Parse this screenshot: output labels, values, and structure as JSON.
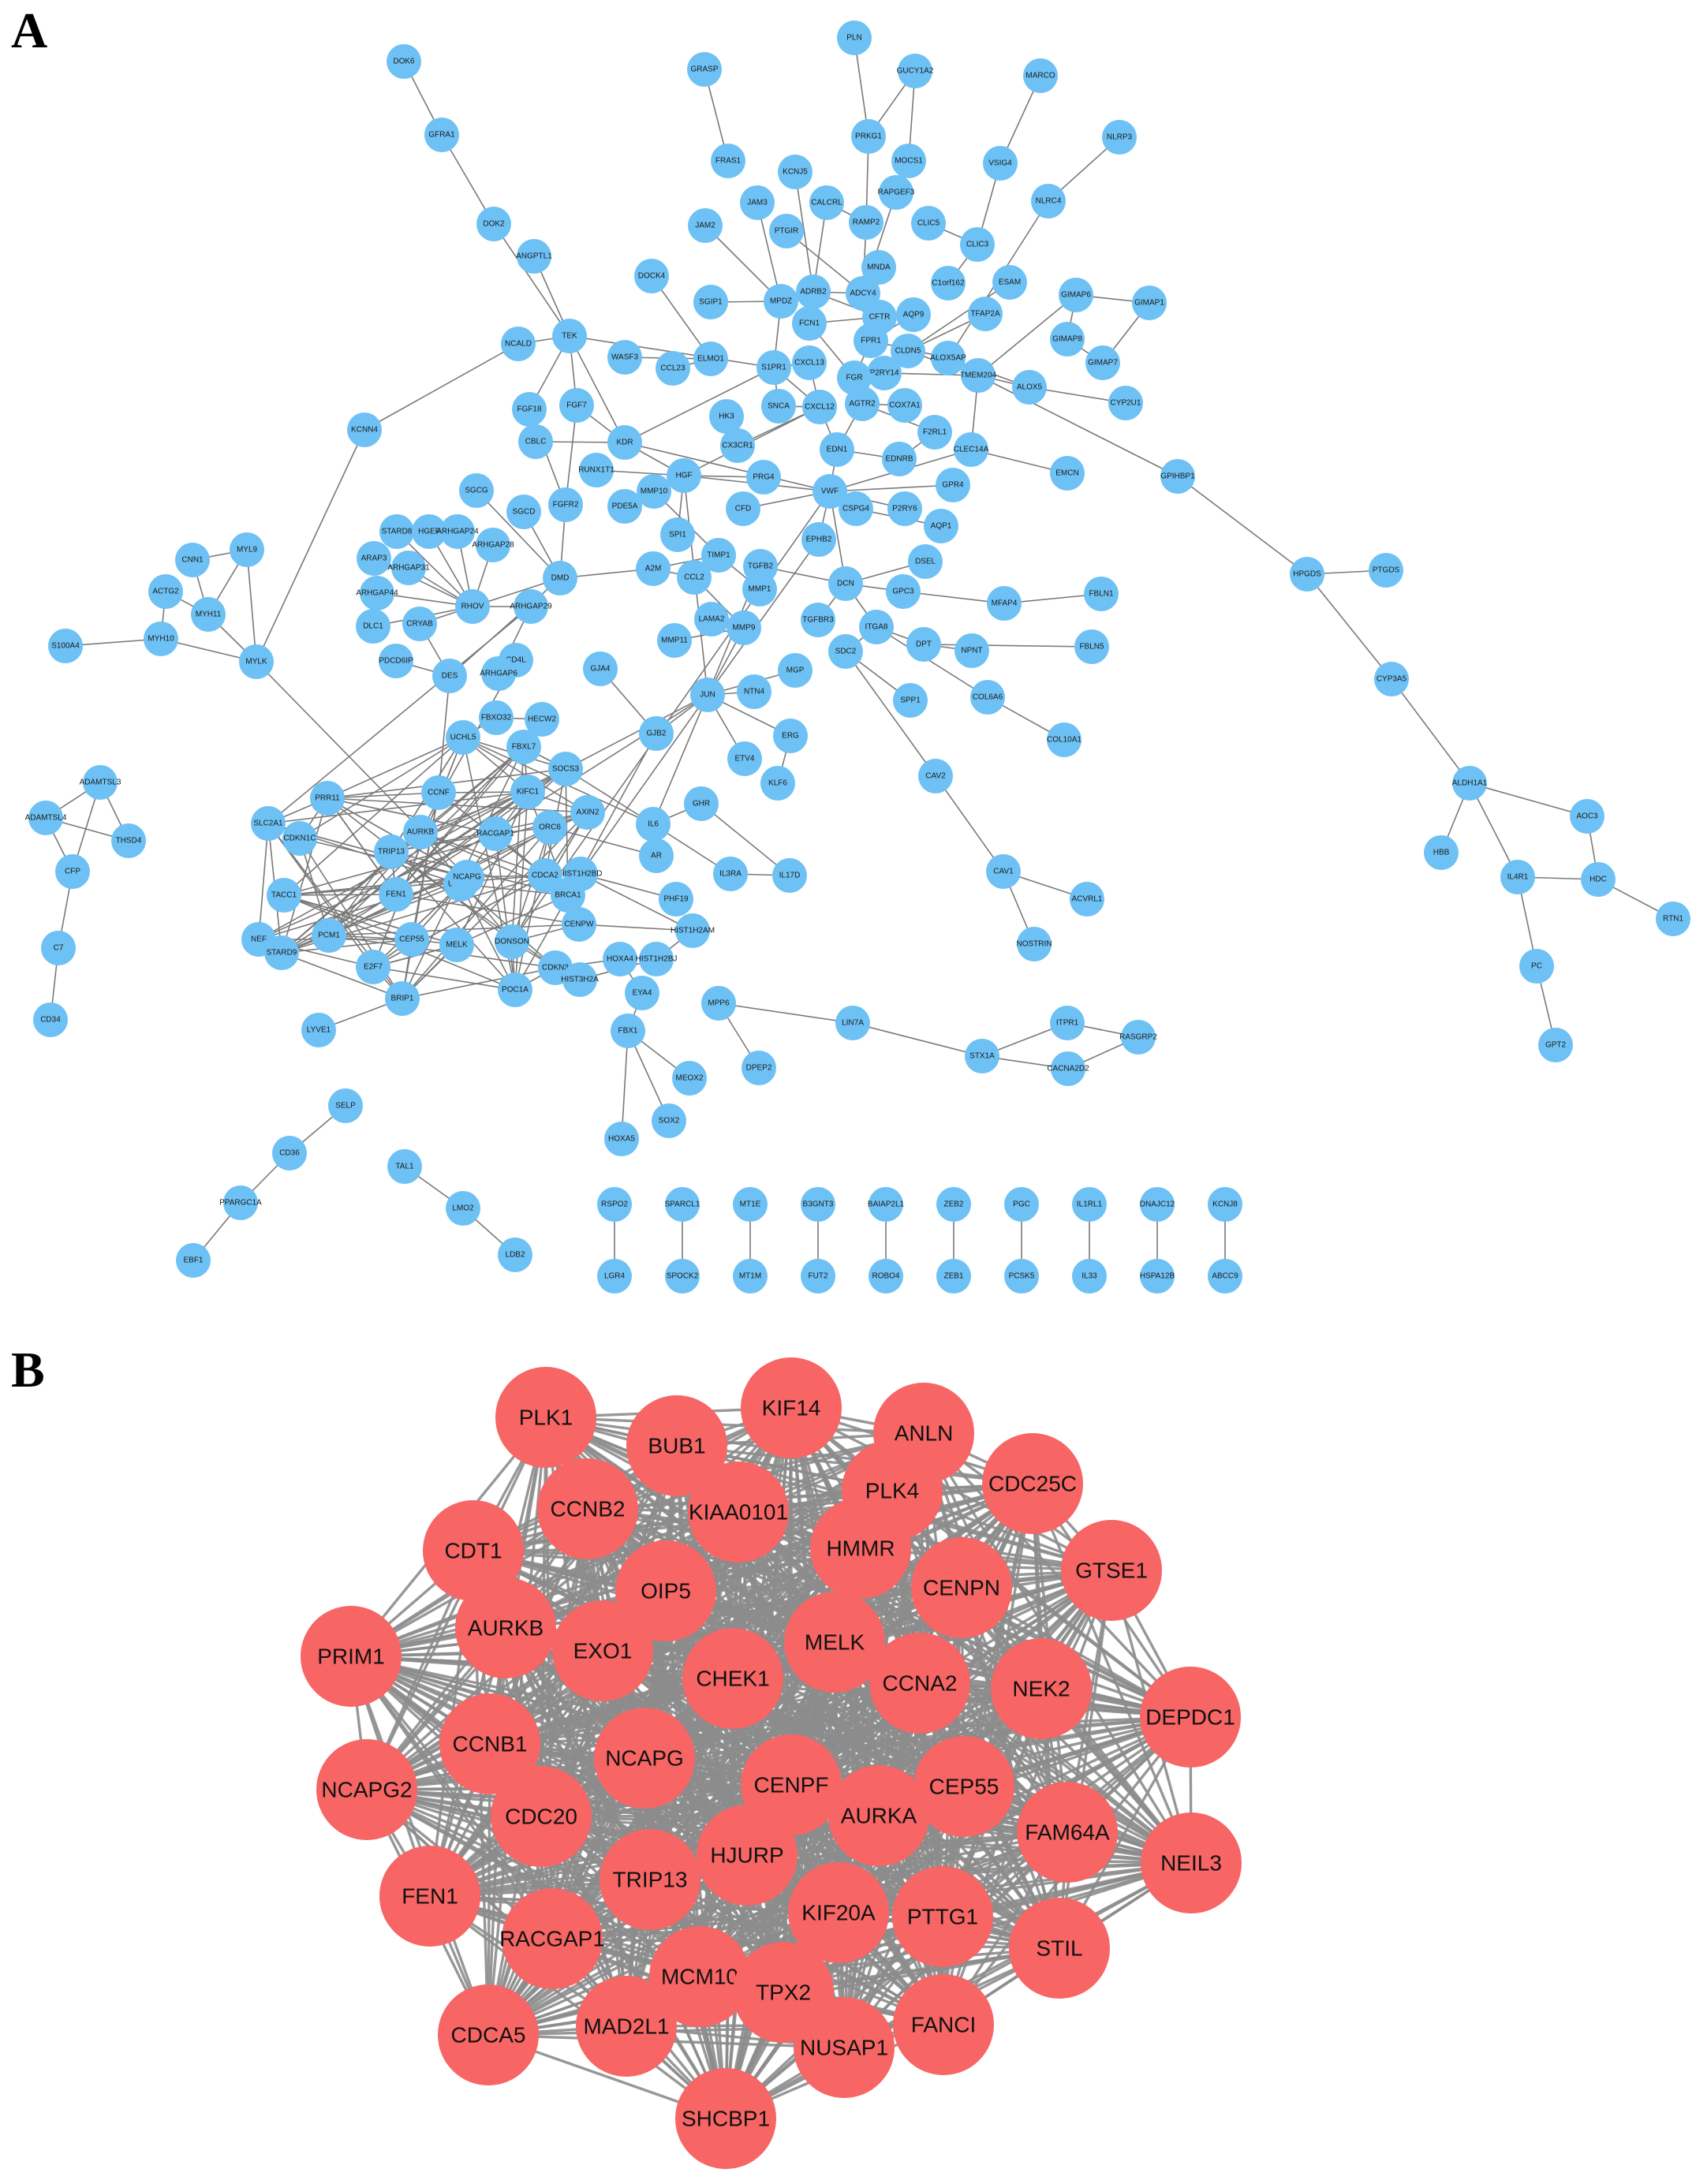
{
  "panels": {
    "a_label": "A",
    "b_label": "B"
  },
  "colors": {
    "panel_a_node": "#6ec1f4",
    "panel_b_node": "#f76565",
    "edge": "#8c8c8c"
  },
  "network_a": {
    "nodes": [
      {
        "id": "DOK6"
      },
      {
        "id": "GFRA1"
      },
      {
        "id": "DOK2"
      },
      {
        "id": "ANGPTL1"
      },
      {
        "id": "TEK"
      },
      {
        "id": "NCALD"
      },
      {
        "id": "KCNN4"
      },
      {
        "id": "GRASP"
      },
      {
        "id": "PLN"
      },
      {
        "id": "GUCY1A2"
      },
      {
        "id": "MARCO"
      },
      {
        "id": "NLRP3"
      },
      {
        "id": "PRKG1"
      },
      {
        "id": "MOCS1"
      },
      {
        "id": "VSIG4"
      },
      {
        "id": "NLRC4"
      },
      {
        "id": "FRAS1"
      },
      {
        "id": "KCNJ5"
      },
      {
        "id": "JAM3"
      },
      {
        "id": "CALCRL"
      },
      {
        "id": "RAMP2"
      },
      {
        "id": "RAPGEF3"
      },
      {
        "id": "CLIC5"
      },
      {
        "id": "CLIC3"
      },
      {
        "id": "JAM2"
      },
      {
        "id": "PTGIR"
      },
      {
        "id": "MNDA"
      },
      {
        "id": "C1orf162"
      },
      {
        "id": "ESAM"
      },
      {
        "id": "GIMAP6"
      },
      {
        "id": "GIMAP1"
      },
      {
        "id": "DOCK4"
      },
      {
        "id": "SGIP1"
      },
      {
        "id": "MPDZ"
      },
      {
        "id": "ADRB2"
      },
      {
        "id": "ADCY4"
      },
      {
        "id": "AQP9"
      },
      {
        "id": "TFAP2A"
      },
      {
        "id": "GIMAP8"
      },
      {
        "id": "GIMAP7"
      },
      {
        "id": "FCN1"
      },
      {
        "id": "CFTR"
      },
      {
        "id": "FPR1"
      },
      {
        "id": "CLDN5"
      },
      {
        "id": "ALOX5AP"
      },
      {
        "id": "TMEM204"
      },
      {
        "id": "ALOX5"
      },
      {
        "id": "CYP2U1"
      },
      {
        "id": "WASF3"
      },
      {
        "id": "CCL23"
      },
      {
        "id": "ELMO1"
      },
      {
        "id": "S1PR1"
      },
      {
        "id": "CXCL13"
      },
      {
        "id": "P2RY14"
      },
      {
        "id": "FGR"
      },
      {
        "id": "FGF18"
      },
      {
        "id": "FGF7"
      },
      {
        "id": "SNCA"
      },
      {
        "id": "CXCL12"
      },
      {
        "id": "AGTR2"
      },
      {
        "id": "COX7A1"
      },
      {
        "id": "CBLC"
      },
      {
        "id": "KDR"
      },
      {
        "id": "HK3"
      },
      {
        "id": "F2RL1"
      },
      {
        "id": "CX3CR1"
      },
      {
        "id": "EDN1"
      },
      {
        "id": "EDNRB"
      },
      {
        "id": "CLEC14A"
      },
      {
        "id": "GPIHBP1"
      },
      {
        "id": "EMCN"
      },
      {
        "id": "SGCG"
      },
      {
        "id": "RUNX1T1"
      },
      {
        "id": "HGF"
      },
      {
        "id": "PRG4"
      },
      {
        "id": "VWF"
      },
      {
        "id": "P2RY6"
      },
      {
        "id": "GPR4"
      },
      {
        "id": "SGCD"
      },
      {
        "id": "FGFR2"
      },
      {
        "id": "PDE5A"
      },
      {
        "id": "MMP10"
      },
      {
        "id": "CFD"
      },
      {
        "id": "CSPG4"
      },
      {
        "id": "AQP1"
      },
      {
        "id": "STARD8"
      },
      {
        "id": "HGEF"
      },
      {
        "id": "ARHGAP24"
      },
      {
        "id": "ARHGAP28"
      },
      {
        "id": "SPI1"
      },
      {
        "id": "EPHB2"
      },
      {
        "id": "TIMP1"
      },
      {
        "id": "DSEL"
      },
      {
        "id": "ARAP3"
      },
      {
        "id": "ARHGAP31"
      },
      {
        "id": "DMD"
      },
      {
        "id": "A2M"
      },
      {
        "id": "TGFB2"
      },
      {
        "id": "MMP1"
      },
      {
        "id": "DCN"
      },
      {
        "id": "GPC3"
      },
      {
        "id": "MFAP4"
      },
      {
        "id": "FBLN1"
      },
      {
        "id": "PTGDS"
      },
      {
        "id": "HPGDS"
      },
      {
        "id": "CNN1"
      },
      {
        "id": "MYL9"
      },
      {
        "id": "ARHGAP44"
      },
      {
        "id": "RHOV"
      },
      {
        "id": "ARHGAP29"
      },
      {
        "id": "CCL2"
      },
      {
        "id": "LAMA2"
      },
      {
        "id": "TGFBR3"
      },
      {
        "id": "ITGA8"
      },
      {
        "id": "ACTG2"
      },
      {
        "id": "MYH11"
      },
      {
        "id": "DLC1"
      },
      {
        "id": "CRYAB"
      },
      {
        "id": "MMP9"
      },
      {
        "id": "DPT"
      },
      {
        "id": "NPNT"
      },
      {
        "id": "FBLN5"
      },
      {
        "id": "S100A4"
      },
      {
        "id": "MYH10"
      },
      {
        "id": "MYLK"
      },
      {
        "id": "PDCD6IP"
      },
      {
        "id": "DES"
      },
      {
        "id": "CD4L"
      },
      {
        "id": "MMP11"
      },
      {
        "id": "SDC2"
      },
      {
        "id": "COL6A6"
      },
      {
        "id": "ARHGAP6"
      },
      {
        "id": "GJA4"
      },
      {
        "id": "JUN"
      },
      {
        "id": "NTN4"
      },
      {
        "id": "MGP"
      },
      {
        "id": "SPP1"
      },
      {
        "id": "CYP3A5"
      },
      {
        "id": "COL10A1"
      },
      {
        "id": "UCHL5"
      },
      {
        "id": "FBXO32"
      },
      {
        "id": "HECW2"
      },
      {
        "id": "GJB2"
      },
      {
        "id": "ERG"
      },
      {
        "id": "FBXL7"
      },
      {
        "id": "ETV4"
      },
      {
        "id": "KLF6"
      },
      {
        "id": "CAV2"
      },
      {
        "id": "CCNF"
      },
      {
        "id": "KIFC1"
      },
      {
        "id": "SOCS3"
      },
      {
        "id": "ALDH1A1"
      },
      {
        "id": "ADAMTSL3"
      },
      {
        "id": "PRR11"
      },
      {
        "id": "GHR"
      },
      {
        "id": "ADAMTSL4"
      },
      {
        "id": "THSD4"
      },
      {
        "id": "SLC2A1"
      },
      {
        "id": "AXIN2"
      },
      {
        "id": "IL6"
      },
      {
        "id": "AOC3"
      },
      {
        "id": "CDKN1C"
      },
      {
        "id": "ORC6"
      },
      {
        "id": "AR"
      },
      {
        "id": "CFP"
      },
      {
        "id": "TRIP13"
      },
      {
        "id": "HIST1H2BD"
      },
      {
        "id": "IL3RA"
      },
      {
        "id": "IL17D"
      },
      {
        "id": "CAV1"
      },
      {
        "id": "HBB"
      },
      {
        "id": "IL4R1"
      },
      {
        "id": "HDC"
      },
      {
        "id": "RTN1"
      },
      {
        "id": "TACC1"
      },
      {
        "id": "FEN1"
      },
      {
        "id": "UBE2T"
      },
      {
        "id": "CDCA2"
      },
      {
        "id": "BRCA1"
      },
      {
        "id": "PHF19"
      },
      {
        "id": "ACVRL1"
      },
      {
        "id": "C7"
      },
      {
        "id": "NEF"
      },
      {
        "id": "PCM1"
      },
      {
        "id": "CENPW"
      },
      {
        "id": "HIST1H2AM"
      },
      {
        "id": "NOSTRIN"
      },
      {
        "id": "PC"
      },
      {
        "id": "STARD9"
      },
      {
        "id": "CEP55"
      },
      {
        "id": "MELK"
      },
      {
        "id": "DONSON"
      },
      {
        "id": "E2F7"
      },
      {
        "id": "CDKN3"
      },
      {
        "id": "HOXA4"
      },
      {
        "id": "HIST1H2BJ"
      },
      {
        "id": "GPT2"
      },
      {
        "id": "POC1A"
      },
      {
        "id": "HIST3H2A"
      },
      {
        "id": "CD34"
      },
      {
        "id": "BRIP1"
      },
      {
        "id": "EYA4"
      },
      {
        "id": "MPP6"
      },
      {
        "id": "LIN7A"
      },
      {
        "id": "ITPR1"
      },
      {
        "id": "RASGRP2"
      },
      {
        "id": "LYVE1"
      },
      {
        "id": "FBX1"
      },
      {
        "id": "DPEP2"
      },
      {
        "id": "STX1A"
      },
      {
        "id": "CACNA2D2"
      },
      {
        "id": "MEOX2"
      },
      {
        "id": "SELP"
      },
      {
        "id": "SOX2"
      },
      {
        "id": "CD36"
      },
      {
        "id": "TAL1"
      },
      {
        "id": "HOXA5"
      },
      {
        "id": "LMO2"
      },
      {
        "id": "PPARGC1A"
      },
      {
        "id": "LDB2"
      },
      {
        "id": "EBF1"
      },
      {
        "id": "RSPO2"
      },
      {
        "id": "LGR4"
      },
      {
        "id": "SPARCL1"
      },
      {
        "id": "SPOCK2"
      },
      {
        "id": "MT1E"
      },
      {
        "id": "MT1M"
      },
      {
        "id": "B3GNT3"
      },
      {
        "id": "FUT2"
      },
      {
        "id": "BAIAP2L1"
      },
      {
        "id": "ROBO4"
      },
      {
        "id": "ZEB2"
      },
      {
        "id": "ZEB1"
      },
      {
        "id": "PGC"
      },
      {
        "id": "PCSK5"
      },
      {
        "id": "IL1RL1"
      },
      {
        "id": "IL33"
      },
      {
        "id": "DNAJC12"
      },
      {
        "id": "HSPA12B"
      },
      {
        "id": "KCNJ8"
      },
      {
        "id": "ABCC9"
      },
      {
        "id": "NCAPG"
      },
      {
        "id": "AURKB"
      },
      {
        "id": "RACGAP1"
      }
    ]
  },
  "network_b": {
    "nodes": [
      {
        "id": "PLK1"
      },
      {
        "id": "BUB1"
      },
      {
        "id": "KIF14"
      },
      {
        "id": "ANLN"
      },
      {
        "id": "CDC25C"
      },
      {
        "id": "PLK4"
      },
      {
        "id": "KIAA0101"
      },
      {
        "id": "CCNB2"
      },
      {
        "id": "CDT1"
      },
      {
        "id": "HMMR"
      },
      {
        "id": "GTSE1"
      },
      {
        "id": "CENPN"
      },
      {
        "id": "OIP5"
      },
      {
        "id": "PRIM1"
      },
      {
        "id": "AURKB"
      },
      {
        "id": "EXO1"
      },
      {
        "id": "MELK"
      },
      {
        "id": "CHEK1"
      },
      {
        "id": "CCNA2"
      },
      {
        "id": "NEK2"
      },
      {
        "id": "DEPDC1"
      },
      {
        "id": "CCNB1"
      },
      {
        "id": "NCAPG"
      },
      {
        "id": "CENPF"
      },
      {
        "id": "CEP55"
      },
      {
        "id": "NCAPG2"
      },
      {
        "id": "CDC20"
      },
      {
        "id": "AURKA"
      },
      {
        "id": "FAM64A"
      },
      {
        "id": "NEIL3"
      },
      {
        "id": "HJURP"
      },
      {
        "id": "TRIP13"
      },
      {
        "id": "FEN1"
      },
      {
        "id": "KIF20A"
      },
      {
        "id": "PTTG1"
      },
      {
        "id": "RACGAP1"
      },
      {
        "id": "STIL"
      },
      {
        "id": "MCM10"
      },
      {
        "id": "TPX2"
      },
      {
        "id": "CDCA5"
      },
      {
        "id": "MAD2L1"
      },
      {
        "id": "FANCI"
      },
      {
        "id": "NUSAP1"
      },
      {
        "id": "SHCBP1"
      }
    ]
  }
}
